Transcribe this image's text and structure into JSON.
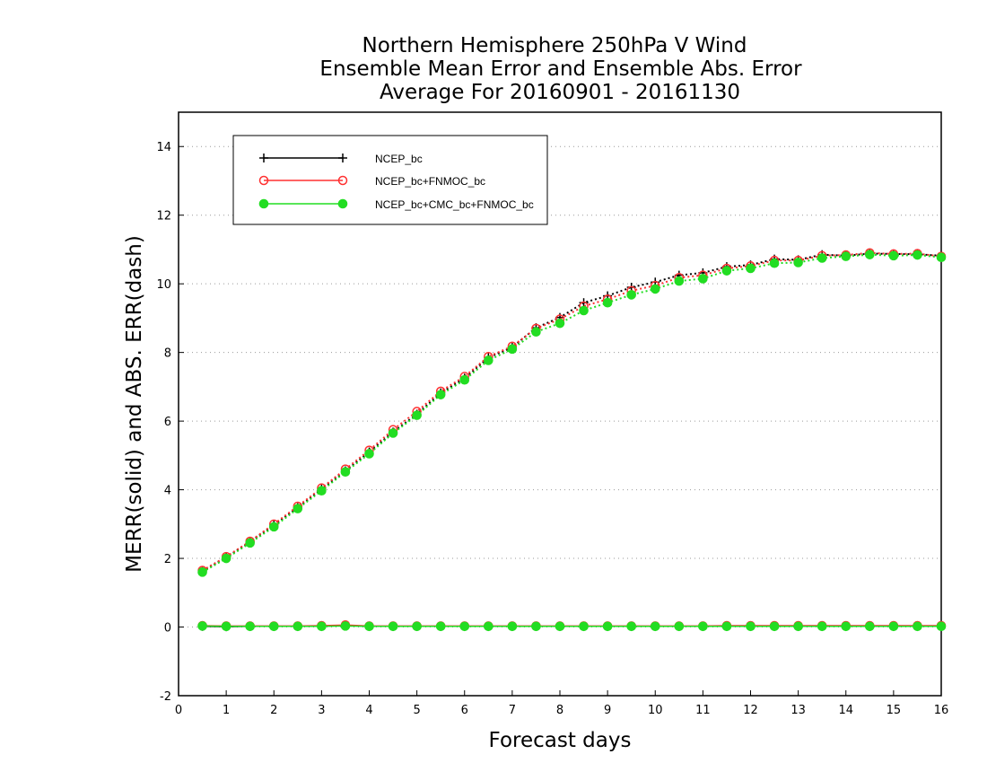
{
  "chart_data": {
    "type": "line",
    "title_lines": [
      "Northern Hemisphere 250hPa V Wind",
      "Ensemble Mean Error and Ensemble Abs. Error",
      "Average For 20160901 - 20161130"
    ],
    "xlabel": "Forecast days",
    "ylabel": "MERR(solid) and ABS. ERR(dash)",
    "xlim": [
      0,
      16
    ],
    "ylim": [
      -2,
      15
    ],
    "xticks": [
      0,
      1,
      2,
      3,
      4,
      5,
      6,
      7,
      8,
      9,
      10,
      11,
      12,
      13,
      14,
      15,
      16
    ],
    "yticks": [
      -2,
      0,
      2,
      4,
      6,
      8,
      10,
      12,
      14
    ],
    "grid": "horizontal dotted",
    "legend_position": "top-left",
    "x": [
      0.5,
      1,
      1.5,
      2,
      2.5,
      3,
      3.5,
      4,
      4.5,
      5,
      5.5,
      6,
      6.5,
      7,
      7.5,
      8,
      8.5,
      9,
      9.5,
      10,
      10.5,
      11,
      11.5,
      12,
      12.5,
      13,
      13.5,
      14,
      14.5,
      15,
      15.5,
      16
    ],
    "series": [
      {
        "name": "NCEP_bc",
        "color": "#000000",
        "marker": "plus",
        "abs_error": [
          1.62,
          2.03,
          2.48,
          2.97,
          3.48,
          4.02,
          4.55,
          5.1,
          5.68,
          6.2,
          6.82,
          7.25,
          7.85,
          8.15,
          8.72,
          9.02,
          9.45,
          9.65,
          9.9,
          10.05,
          10.25,
          10.32,
          10.5,
          10.55,
          10.72,
          10.7,
          10.85,
          10.82,
          10.88,
          10.87,
          10.86,
          10.82
        ],
        "mean_error": [
          0.02,
          0.01,
          0.02,
          0.02,
          0.02,
          0.03,
          0.05,
          0.02,
          0.02,
          0.02,
          0.02,
          0.02,
          0.02,
          0.02,
          0.02,
          0.02,
          0.02,
          0.02,
          0.02,
          0.02,
          0.02,
          0.02,
          0.02,
          0.02,
          0.02,
          0.02,
          0.02,
          0.02,
          0.02,
          0.02,
          0.02,
          0.02
        ]
      },
      {
        "name": "NCEP_bc+FNMOC_bc",
        "color": "#ff3030",
        "marker": "open-circle",
        "abs_error": [
          1.65,
          2.05,
          2.5,
          3.0,
          3.52,
          4.05,
          4.6,
          5.15,
          5.75,
          6.28,
          6.87,
          7.3,
          7.88,
          8.18,
          8.7,
          8.97,
          9.35,
          9.55,
          9.8,
          9.95,
          10.18,
          10.25,
          10.45,
          10.52,
          10.68,
          10.68,
          10.82,
          10.84,
          10.9,
          10.87,
          10.88,
          10.8
        ],
        "mean_error": [
          0.04,
          0.03,
          0.03,
          0.03,
          0.03,
          0.04,
          0.06,
          0.03,
          0.03,
          0.03,
          0.03,
          0.03,
          0.03,
          0.03,
          0.03,
          0.03,
          0.03,
          0.03,
          0.03,
          0.03,
          0.03,
          0.03,
          0.04,
          0.04,
          0.04,
          0.04,
          0.04,
          0.04,
          0.04,
          0.04,
          0.04,
          0.04
        ]
      },
      {
        "name": "NCEP_bc+CMC_bc+FNMOC_bc",
        "color": "#22dd22",
        "marker": "filled-circle",
        "abs_error": [
          1.6,
          2.0,
          2.45,
          2.92,
          3.45,
          3.97,
          4.52,
          5.05,
          5.65,
          6.17,
          6.77,
          7.2,
          7.77,
          8.1,
          8.6,
          8.85,
          9.22,
          9.45,
          9.68,
          9.85,
          10.08,
          10.15,
          10.38,
          10.45,
          10.6,
          10.62,
          10.75,
          10.8,
          10.85,
          10.82,
          10.84,
          10.77
        ],
        "mean_error": [
          0.03,
          0.02,
          0.02,
          0.02,
          0.02,
          0.02,
          0.03,
          0.02,
          0.02,
          0.02,
          0.02,
          0.02,
          0.02,
          0.02,
          0.02,
          0.02,
          0.02,
          0.02,
          0.02,
          0.02,
          0.02,
          0.02,
          0.02,
          0.02,
          0.02,
          0.02,
          0.02,
          0.02,
          0.02,
          0.02,
          0.02,
          0.02
        ]
      }
    ]
  }
}
